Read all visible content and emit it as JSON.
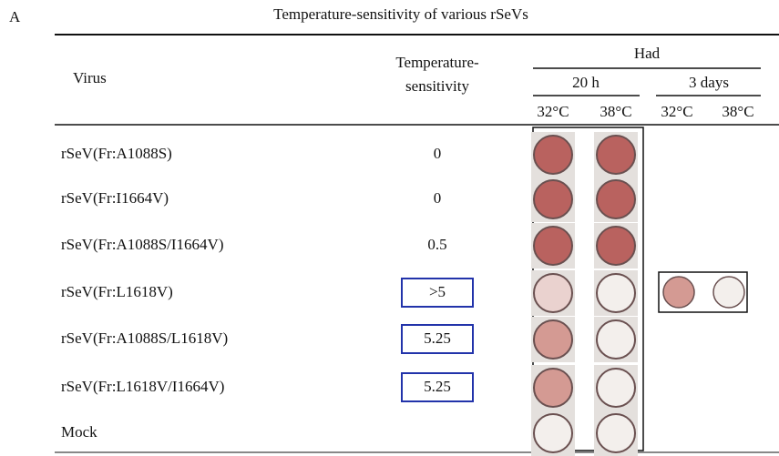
{
  "panel_label": "A",
  "title": "Temperature-sensitivity of various rSeVs",
  "header": {
    "virus": "Virus",
    "ts_lines": [
      "Temperature-",
      "sensitivity"
    ],
    "had": "Had",
    "time_20h": "20 h",
    "time_3d": "3 days",
    "temperatures": [
      "32°C",
      "38°C",
      "32°C",
      "38°C"
    ]
  },
  "table": {
    "rows": [
      {
        "virus": "rSeV(Fr:A1088S)",
        "ts": 0
      },
      {
        "virus": "rSeV(Fr:I1664V)",
        "ts": 0
      },
      {
        "virus": "rSeV(Fr:A1088S/I1664V)",
        "ts": 0.5
      },
      {
        "virus": "rSeV(Fr:L1618V)",
        "ts": ">5"
      },
      {
        "virus": "rSeV(Fr:A1088S/L1618V)",
        "ts": 5.25
      },
      {
        "virus": "rSeV(Fr:L1618V/I1664V)",
        "ts": 5.25
      },
      {
        "virus": "Mock"
      }
    ]
  }
}
